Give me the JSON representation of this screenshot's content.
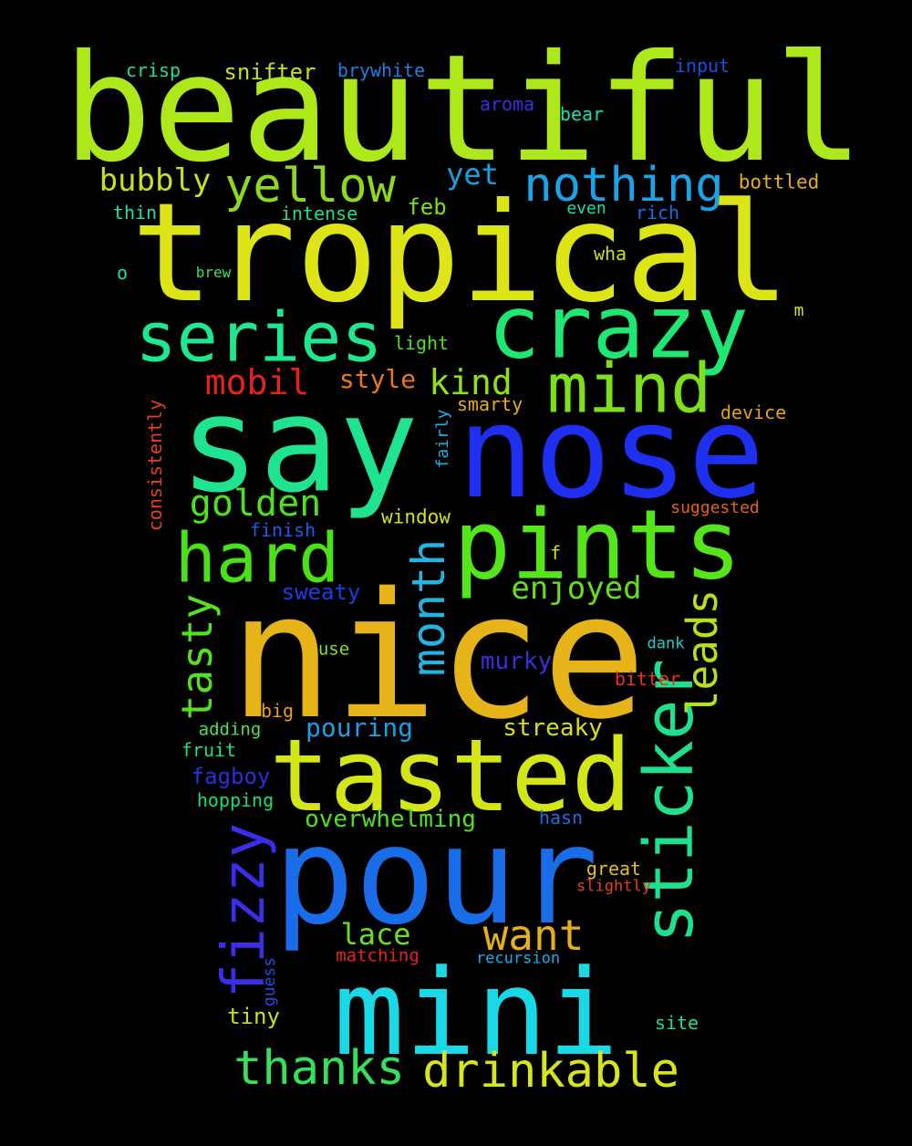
{
  "background": "#000000",
  "words": [
    {
      "text": "beautiful",
      "weight": 162,
      "color": "#ade81a"
    },
    {
      "text": "tropical",
      "weight": 150,
      "color": "#dde516"
    },
    {
      "text": "nice",
      "weight": 190,
      "color": "#e6b318"
    },
    {
      "text": "nose",
      "weight": 140,
      "color": "#1f2ff0"
    },
    {
      "text": "say",
      "weight": 145,
      "color": "#20e38f"
    },
    {
      "text": "pour",
      "weight": 148,
      "color": "#1a6de8"
    },
    {
      "text": "mini",
      "weight": 130,
      "color": "#1ad9e6"
    },
    {
      "text": "crazy",
      "weight": 95,
      "color": "#1ee873"
    },
    {
      "text": "tasted",
      "weight": 110,
      "color": "#d4e617"
    },
    {
      "text": "pints",
      "weight": 105,
      "color": "#54e61a"
    },
    {
      "text": "series",
      "weight": 75,
      "color": "#1ee88f"
    },
    {
      "text": "hard",
      "weight": 75,
      "color": "#4be017"
    },
    {
      "text": "mind",
      "weight": 75,
      "color": "#7de01a"
    },
    {
      "text": "sticker",
      "weight": 74,
      "color": "#1fe18d"
    },
    {
      "text": "fizzy",
      "weight": 64,
      "color": "#3a2ee8"
    },
    {
      "text": "yellow",
      "weight": 52,
      "color": "#8ed91e"
    },
    {
      "text": "nothing",
      "weight": 52,
      "color": "#1aa3e6"
    },
    {
      "text": "drinkable",
      "weight": 52,
      "color": "#d8e51a"
    },
    {
      "text": "thanks",
      "weight": 52,
      "color": "#35e05a"
    },
    {
      "text": "month",
      "weight": 50,
      "color": "#24b4e4"
    },
    {
      "text": "tasty",
      "weight": 46,
      "color": "#56e01f"
    },
    {
      "text": "leads",
      "weight": 46,
      "color": "#b6e01c"
    },
    {
      "text": "want",
      "weight": 46,
      "color": "#e6b01a"
    },
    {
      "text": "golden",
      "weight": 40,
      "color": "#4de11f"
    },
    {
      "text": "mobil",
      "weight": 38,
      "color": "#e6231a"
    },
    {
      "text": "kind",
      "weight": 38,
      "color": "#8fe01a"
    },
    {
      "text": "enjoyed",
      "weight": 34,
      "color": "#63e01a"
    },
    {
      "text": "bubbly",
      "weight": 34,
      "color": "#c8e01c"
    },
    {
      "text": "lace",
      "weight": 32,
      "color": "#6ee01a"
    },
    {
      "text": "yet",
      "weight": 32,
      "color": "#1a9ee6"
    },
    {
      "text": "style",
      "weight": 28,
      "color": "#e67a1a"
    },
    {
      "text": "murky",
      "weight": 26,
      "color": "#3a2ee0"
    },
    {
      "text": "pouring",
      "weight": 28,
      "color": "#1a9ee6"
    },
    {
      "text": "streaky",
      "weight": 26,
      "color": "#d6e01a"
    },
    {
      "text": "overwhelming",
      "weight": 26,
      "color": "#4fe01f"
    },
    {
      "text": "sweaty",
      "weight": 24,
      "color": "#1a3ee6"
    },
    {
      "text": "fagboy",
      "weight": 24,
      "color": "#2a2ee0"
    },
    {
      "text": "snifter",
      "weight": 24,
      "color": "#c8e01a"
    },
    {
      "text": "feb",
      "weight": 24,
      "color": "#7ae01a"
    },
    {
      "text": "tiny",
      "weight": 24,
      "color": "#c8e01a"
    },
    {
      "text": "bottled",
      "weight": 21,
      "color": "#e6b01a"
    },
    {
      "text": "window",
      "weight": 21,
      "color": "#d6e01a"
    },
    {
      "text": "bitter",
      "weight": 20,
      "color": "#e6331a"
    },
    {
      "text": "crisp",
      "weight": 20,
      "color": "#1ae0a0"
    },
    {
      "text": "brywhite",
      "weight": 20,
      "color": "#1a82e6"
    },
    {
      "text": "input",
      "weight": 20,
      "color": "#1a4ee6"
    },
    {
      "text": "aroma",
      "weight": 20,
      "color": "#3a2ee0"
    },
    {
      "text": "bear",
      "weight": 20,
      "color": "#1ae0b0"
    },
    {
      "text": "thin",
      "weight": 20,
      "color": "#1ae0b0"
    },
    {
      "text": "intense",
      "weight": 20,
      "color": "#1ae08a"
    },
    {
      "text": "even",
      "weight": 18,
      "color": "#1ae0b0"
    },
    {
      "text": "rich",
      "weight": 20,
      "color": "#1a6ee6"
    },
    {
      "text": "wha",
      "weight": 20,
      "color": "#c8e01a"
    },
    {
      "text": "o",
      "weight": 20,
      "color": "#1ae0b0"
    },
    {
      "text": "brew",
      "weight": 16,
      "color": "#3ae05a"
    },
    {
      "text": "m",
      "weight": 18,
      "color": "#d6e01a"
    },
    {
      "text": "light",
      "weight": 20,
      "color": "#4ae01a"
    },
    {
      "text": "smarty",
      "weight": 20,
      "color": "#e6b01a"
    },
    {
      "text": "device",
      "weight": 20,
      "color": "#e6a01a"
    },
    {
      "text": "finish",
      "weight": 20,
      "color": "#1a5ee6"
    },
    {
      "text": "suggested",
      "weight": 18,
      "color": "#e6601a"
    },
    {
      "text": "f",
      "weight": 20,
      "color": "#d6e01a"
    },
    {
      "text": "dank",
      "weight": 17,
      "color": "#1ad0d6"
    },
    {
      "text": "use",
      "weight": 19,
      "color": "#8ae01a"
    },
    {
      "text": "big",
      "weight": 20,
      "color": "#e6a01a"
    },
    {
      "text": "adding",
      "weight": 19,
      "color": "#4ae05a"
    },
    {
      "text": "fruit",
      "weight": 20,
      "color": "#1ae08a"
    },
    {
      "text": "hopping",
      "weight": 20,
      "color": "#1ae06a"
    },
    {
      "text": "hasn",
      "weight": 20,
      "color": "#1a6ee6"
    },
    {
      "text": "great",
      "weight": 20,
      "color": "#e6c01a"
    },
    {
      "text": "slightly",
      "weight": 17,
      "color": "#e6401a"
    },
    {
      "text": "matching",
      "weight": 19,
      "color": "#e6231a"
    },
    {
      "text": "recursion",
      "weight": 17,
      "color": "#1ab0e6"
    },
    {
      "text": "site",
      "weight": 20,
      "color": "#1ae08a"
    },
    {
      "text": "consistently",
      "weight": 20,
      "color": "#e6401a"
    },
    {
      "text": "fairly",
      "weight": 18,
      "color": "#1ab0e6"
    },
    {
      "text": "guess",
      "weight": 18,
      "color": "#1a4ee6"
    }
  ]
}
